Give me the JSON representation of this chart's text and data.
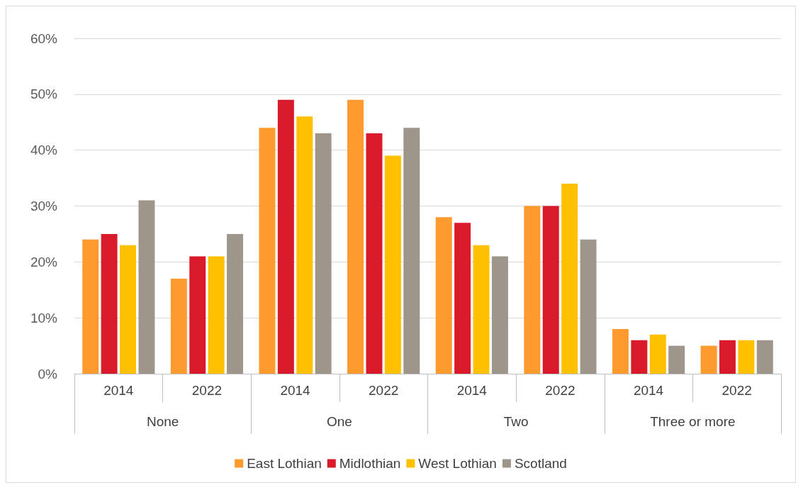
{
  "chart_data": {
    "type": "bar",
    "categories": [
      "2014",
      "2022",
      "2014",
      "2022",
      "2014",
      "2022",
      "2014",
      "2022"
    ],
    "annotations": [
      "None",
      "One",
      "Two",
      "Three or more"
    ],
    "series": [
      {
        "name": "East Lothian",
        "color": "#ff9a2e",
        "values": [
          24,
          17,
          44,
          49,
          28,
          30,
          8,
          5
        ]
      },
      {
        "name": "Midlothian",
        "color": "#d91a2a",
        "values": [
          25,
          21,
          49,
          43,
          27,
          30,
          6,
          6
        ]
      },
      {
        "name": "West Lothian",
        "color": "#ffc000",
        "values": [
          23,
          21,
          46,
          39,
          23,
          34,
          7,
          6
        ]
      },
      {
        "name": "Scotland",
        "color": "#9e958b",
        "values": [
          31,
          25,
          43,
          44,
          21,
          24,
          5,
          6
        ]
      }
    ],
    "ylim": [
      0,
      60
    ],
    "yticks": [
      {
        "value": 0,
        "label": "0%"
      },
      {
        "value": 10,
        "label": "10%"
      },
      {
        "value": 20,
        "label": "20%"
      },
      {
        "value": 30,
        "label": "30%"
      },
      {
        "value": 40,
        "label": "40%"
      },
      {
        "value": 50,
        "label": "50%"
      },
      {
        "value": 60,
        "label": "60%"
      }
    ],
    "grid": "y",
    "legend": "bottom"
  }
}
